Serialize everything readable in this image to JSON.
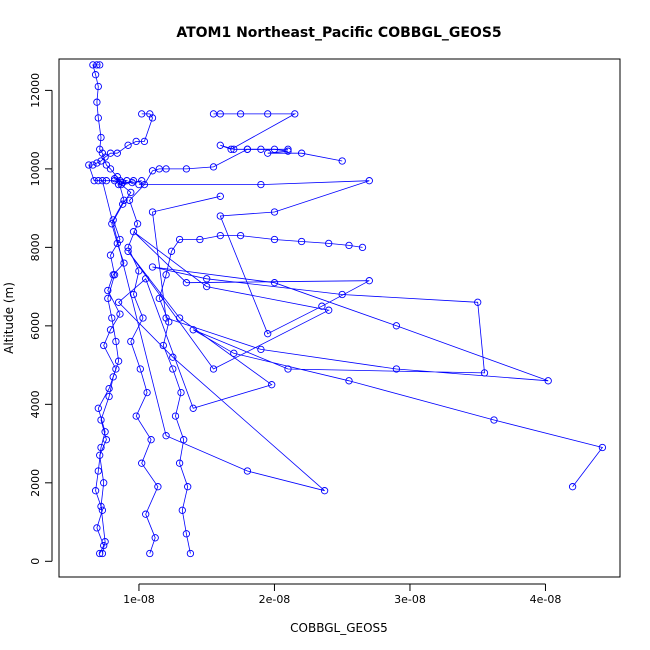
{
  "chart_data": {
    "type": "scatter",
    "title": "ATOM1 Northeast_Pacific COBBGL_GEOS5",
    "xlabel": "COBBGL_GEOS5",
    "ylabel": "Altitude (m)",
    "xlim": [
      4.1e-09,
      4.55e-08
    ],
    "ylim": [
      -400,
      12800
    ],
    "x_ticks": [
      1e-08,
      2e-08,
      3e-08,
      4e-08
    ],
    "x_tick_labels": [
      "1e-08",
      "2e-08",
      "3e-08",
      "4e-08"
    ],
    "y_ticks": [
      0,
      2000,
      4000,
      6000,
      8000,
      10000,
      12000
    ],
    "y_tick_labels": [
      "0",
      "2000",
      "4000",
      "6000",
      "8000",
      "10000",
      "12000"
    ],
    "grid": false,
    "connected": true,
    "marker": "open-circle",
    "color": "#0000ff",
    "series": [
      {
        "x": [
          7.1e-09,
          7.4e-09,
          6.9e-09,
          7.3e-09,
          6.8e-09,
          7e-09,
          7.2e-09,
          7.5e-09,
          7e-09,
          7.8e-09,
          8.3e-09,
          7.4e-09,
          7.9e-09,
          8.6e-09,
          7.7e-09,
          8.1e-09,
          8.9e-09,
          8.4e-09,
          8e-09,
          8.8e-09,
          9.4e-09,
          8.7e-09,
          9.6e-09,
          8.5e-09,
          9.1e-09,
          8.2e-09,
          8.6e-09,
          7.9e-09,
          7.6e-09,
          7.3e-09,
          7.1e-09,
          7.2e-09,
          7e-09,
          6.9e-09,
          7e-09,
          6.8e-09,
          6.6e-09,
          6.9e-09,
          7.1e-09
        ],
        "y": [
          200,
          400,
          850,
          1300,
          1800,
          2300,
          2900,
          3300,
          3900,
          4400,
          4900,
          5500,
          5900,
          6300,
          6900,
          7300,
          7600,
          8100,
          8600,
          9100,
          9400,
          9600,
          9700,
          9600,
          9700,
          9750,
          9700,
          10000,
          10100,
          10400,
          10500,
          10800,
          11300,
          11700,
          12100,
          12400,
          12650,
          12650,
          12650
        ]
      },
      {
        "x": [
          1.08e-08,
          1.12e-08,
          1.05e-08,
          1.14e-08,
          1.02e-08,
          1.09e-08,
          9.8e-09,
          1.06e-08,
          1.01e-08,
          9.4e-09,
          1.03e-08,
          9.6e-09,
          1e-08,
          9.2e-09,
          9.9e-09,
          9.3e-09,
          1.04e-08,
          1.1e-08,
          1.15e-08,
          1.2e-08,
          1.35e-08,
          1.55e-08,
          1.8e-08,
          2.1e-08
        ],
        "y": [
          200,
          600,
          1200,
          1900,
          2500,
          3100,
          3700,
          4300,
          4900,
          5600,
          6200,
          6800,
          7400,
          8000,
          8600,
          9200,
          9600,
          9950,
          10000,
          10000,
          10000,
          10050,
          10500,
          10500
        ]
      },
      {
        "x": [
          1.38e-08,
          1.35e-08,
          1.32e-08,
          1.36e-08,
          1.3e-08,
          1.33e-08,
          1.27e-08,
          1.31e-08,
          1.25e-08,
          1.18e-08,
          1.22e-08,
          1.15e-08,
          1.2e-08,
          1.24e-08,
          1.3e-08,
          1.45e-08,
          1.6e-08,
          1.75e-08,
          2e-08,
          2.2e-08,
          2.4e-08,
          2.55e-08,
          2.65e-08
        ],
        "y": [
          200,
          700,
          1300,
          1900,
          2500,
          3100,
          3700,
          4300,
          4900,
          5500,
          6100,
          6700,
          7300,
          7900,
          8200,
          8200,
          8300,
          8300,
          8200,
          8150,
          8100,
          8050,
          8000
        ]
      },
      {
        "x": [
          7.3e-09,
          1.2e-08,
          1.8e-08,
          2.37e-08,
          1.25e-08,
          8.5e-09,
          1.05e-08,
          1.4e-08,
          1.98e-08,
          1.3e-08,
          9.2e-09,
          1.55e-08,
          2.4e-08,
          1.5e-08,
          9.6e-09,
          1.35e-08,
          2.7e-08,
          2.35e-08,
          1.95e-08,
          1.6e-08,
          2e-08,
          2.7e-08,
          1.9e-08,
          1e-08
        ],
        "y": [
          9700,
          3200,
          2300,
          1800,
          5200,
          6600,
          7200,
          3900,
          4500,
          6200,
          7900,
          4900,
          6400,
          7000,
          8400,
          7100,
          7150,
          6500,
          5800,
          8800,
          8900,
          9700,
          9600,
          9600
        ]
      },
      {
        "x": [
          4.2e-08,
          4.42e-08,
          3.62e-08,
          2.55e-08,
          1.7e-08,
          1.4e-08,
          2.1e-08,
          3.55e-08,
          3.5e-08,
          2.5e-08,
          1.5e-08,
          1.1e-08,
          2e-08,
          2.9e-08,
          4.02e-08,
          2.9e-08,
          1.9e-08,
          1.2e-08,
          1.1e-08,
          1.6e-08
        ],
        "y": [
          1900,
          2900,
          3600,
          4600,
          5300,
          5900,
          4900,
          4800,
          6600,
          6800,
          7200,
          7500,
          7100,
          6000,
          4600,
          4900,
          5400,
          6200,
          8900,
          9300
        ]
      },
      {
        "x": [
          1.55e-08,
          1.6e-08,
          1.75e-08,
          1.95e-08,
          2.15e-08,
          1.68e-08,
          1.6e-08,
          1.7e-08,
          1.8e-08,
          1.9e-08,
          2e-08,
          2.1e-08,
          1.95e-08,
          2.2e-08,
          2.5e-08
        ],
        "y": [
          11400,
          11400,
          11400,
          11400,
          11400,
          10500,
          10600,
          10500,
          10500,
          10500,
          10500,
          10450,
          10400,
          10400,
          10200
        ]
      },
      {
        "x": [
          1.02e-08,
          1.08e-08,
          1.1e-08,
          1.04e-08,
          9.8e-09,
          9.2e-09,
          8.4e-09,
          7.9e-09,
          7.5e-09,
          7.2e-09,
          6.9e-09,
          6.6e-09,
          6.3e-09,
          6.7e-09,
          7e-09,
          7.6e-09,
          8.2e-09,
          8.8e-09,
          9.5e-09,
          1.02e-08
        ],
        "y": [
          11400,
          11400,
          11300,
          10700,
          10700,
          10600,
          10400,
          10400,
          10300,
          10200,
          10150,
          10100,
          10100,
          9700,
          9700,
          9700,
          9700,
          9650,
          9650,
          9700
        ]
      },
      {
        "x": [
          7.3e-09,
          7.5e-09,
          7.2e-09,
          7.4e-09,
          7.1e-09,
          7.6e-09,
          7.2e-09,
          7.8e-09,
          8.1e-09,
          8.5e-09,
          8.3e-09,
          8e-09,
          7.7e-09,
          8.2e-09,
          7.9e-09,
          8.6e-09,
          8.1e-09,
          8.9e-09,
          8.4e-09
        ],
        "y": [
          200,
          500,
          1400,
          2000,
          2700,
          3100,
          3600,
          4200,
          4700,
          5100,
          5600,
          6200,
          6700,
          7300,
          7800,
          8200,
          8700,
          9200,
          9800
        ]
      }
    ]
  }
}
